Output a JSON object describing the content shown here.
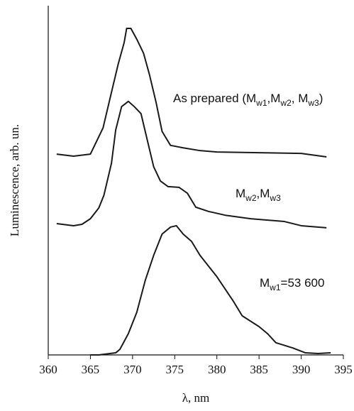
{
  "chart_data": {
    "type": "line",
    "xlabel": "λ, nm",
    "ylabel": "Luminescence, arb. un.",
    "xlim": [
      360,
      395
    ],
    "xticks": [
      360,
      365,
      370,
      375,
      380,
      385,
      390,
      395
    ],
    "ylim": [
      0,
      100
    ],
    "series": [
      {
        "color": "#1a1a1a",
        "label": [
          "As prepared (M",
          "w1",
          ",M",
          "w2",
          ", M",
          "w3",
          ")"
        ],
        "x": [
          361,
          363,
          365,
          365.5,
          366.5,
          367.5,
          368.3,
          369,
          369.3,
          369.8,
          370.5,
          371.3,
          372,
          372.8,
          373.5,
          374.5,
          376,
          378,
          380,
          385,
          390,
          393
        ],
        "values": [
          57.5,
          56.9,
          57.5,
          60.0,
          65.0,
          75.2,
          83.3,
          89.4,
          93.5,
          93.5,
          90.4,
          86.4,
          80.3,
          72.2,
          64.0,
          60.0,
          59.3,
          58.5,
          58.1,
          57.9,
          57.7,
          56.7
        ]
      },
      {
        "color": "#1a1a1a",
        "label": [
          "M",
          "w2",
          ",M",
          "w3"
        ],
        "x": [
          361,
          363,
          364,
          365,
          366,
          366.6,
          367.5,
          368,
          368.7,
          369.5,
          370.2,
          371,
          371.7,
          372.5,
          373.3,
          374.2,
          375.5,
          376.5,
          377.5,
          379,
          381,
          384,
          388,
          390,
          393
        ],
        "values": [
          37.6,
          37.0,
          37.4,
          39.0,
          42.1,
          45.7,
          54.9,
          64.4,
          71.1,
          72.6,
          71.1,
          69.1,
          62.0,
          53.9,
          49.8,
          48.2,
          48.0,
          46.3,
          42.3,
          41.1,
          40.0,
          39.0,
          38.2,
          37.0,
          36.4
        ]
      },
      {
        "color": "#1a1a1a",
        "label": [
          "M",
          "w1",
          "=53 600"
        ],
        "x": [
          365,
          366,
          368,
          368.5,
          369.5,
          370.5,
          371.5,
          372.5,
          373.5,
          374.5,
          375.2,
          376,
          377,
          378,
          380,
          382,
          383,
          385,
          386,
          387,
          389,
          390.5,
          392,
          393.5
        ],
        "values": [
          0,
          0,
          0.6,
          1.6,
          6.1,
          12.2,
          21.3,
          28.5,
          34.6,
          36.6,
          37.0,
          34.6,
          32.5,
          28.5,
          22.4,
          15.2,
          11.2,
          8.1,
          6.1,
          3.5,
          2.0,
          0.6,
          0.4,
          0.6
        ]
      }
    ]
  }
}
